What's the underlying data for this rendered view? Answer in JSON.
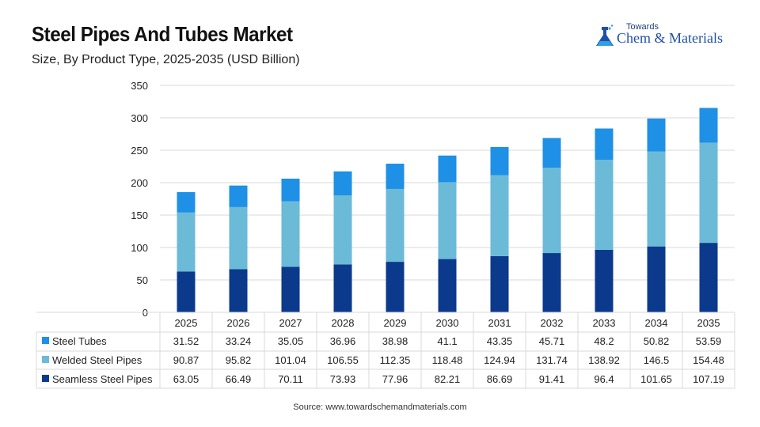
{
  "header": {
    "title": "Steel Pipes And Tubes Market",
    "subtitle": "Size, By Product Type, 2025-2035 (USD Billion)"
  },
  "logo": {
    "small_text": "Towards",
    "brand_text": "Chem & Materials"
  },
  "source": "Source: www.towardschemandmaterials.com",
  "colors": {
    "steel_tubes": "#1E90E6",
    "welded_steel_pipes": "#6BBAD8",
    "seamless_steel_pipes": "#0B3A8C"
  },
  "chart_data": {
    "type": "bar",
    "stacked": true,
    "title": "Steel Pipes And Tubes Market",
    "subtitle": "Size, By Product Type, 2025-2035 (USD Billion)",
    "categories": [
      "2025",
      "2026",
      "2027",
      "2028",
      "2029",
      "2030",
      "2031",
      "2032",
      "2033",
      "2034",
      "2035"
    ],
    "series": [
      {
        "name": "Seamless Steel Pipes",
        "color": "#0B3A8C",
        "values": [
          63.05,
          66.49,
          70.11,
          73.93,
          77.96,
          82.21,
          86.69,
          91.41,
          96.4,
          101.65,
          107.19
        ]
      },
      {
        "name": "Welded Steel Pipes",
        "color": "#6BBAD8",
        "values": [
          90.87,
          95.82,
          101.04,
          106.55,
          112.35,
          118.48,
          124.94,
          131.74,
          138.92,
          146.5,
          154.48
        ]
      },
      {
        "name": "Steel Tubes",
        "color": "#1E90E6",
        "values": [
          31.52,
          33.24,
          35.05,
          36.96,
          38.98,
          41.1,
          43.35,
          45.71,
          48.2,
          50.82,
          53.59
        ]
      }
    ],
    "table_rows": [
      {
        "name": "Steel Tubes",
        "color": "#1E90E6",
        "labels": [
          "31.52",
          "33.24",
          "35.05",
          "36.96",
          "38.98",
          "41.1",
          "43.35",
          "45.71",
          "48.2",
          "50.82",
          "53.59"
        ]
      },
      {
        "name": "Welded Steel Pipes",
        "color": "#6BBAD8",
        "labels": [
          "90.87",
          "95.82",
          "101.04",
          "106.55",
          "112.35",
          "118.48",
          "124.94",
          "131.74",
          "138.92",
          "146.5",
          "154.48"
        ]
      },
      {
        "name": "Seamless Steel Pipes",
        "color": "#0B3A8C",
        "labels": [
          "63.05",
          "66.49",
          "70.11",
          "73.93",
          "77.96",
          "82.21",
          "86.69",
          "91.41",
          "96.4",
          "101.65",
          "107.19"
        ]
      }
    ],
    "ylim": [
      0,
      350
    ],
    "yticks": [
      0,
      50,
      100,
      150,
      200,
      250,
      300,
      350
    ],
    "grid": true,
    "legend": "data-table-left"
  }
}
